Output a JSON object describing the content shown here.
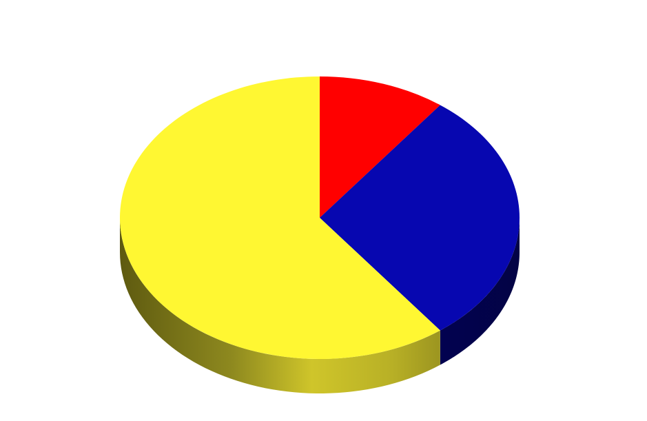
{
  "chart_data": {
    "type": "pie",
    "style": "3d",
    "start_angle": "12 o'clock",
    "direction": "clockwise",
    "labels_visible": false,
    "legend": "none",
    "slices": [
      {
        "value": 10.3,
        "color": "#ff0000"
      },
      {
        "value": 29.4,
        "color": "#0707b0"
      },
      {
        "value": 60.3,
        "color": "#fff732"
      }
    ]
  }
}
